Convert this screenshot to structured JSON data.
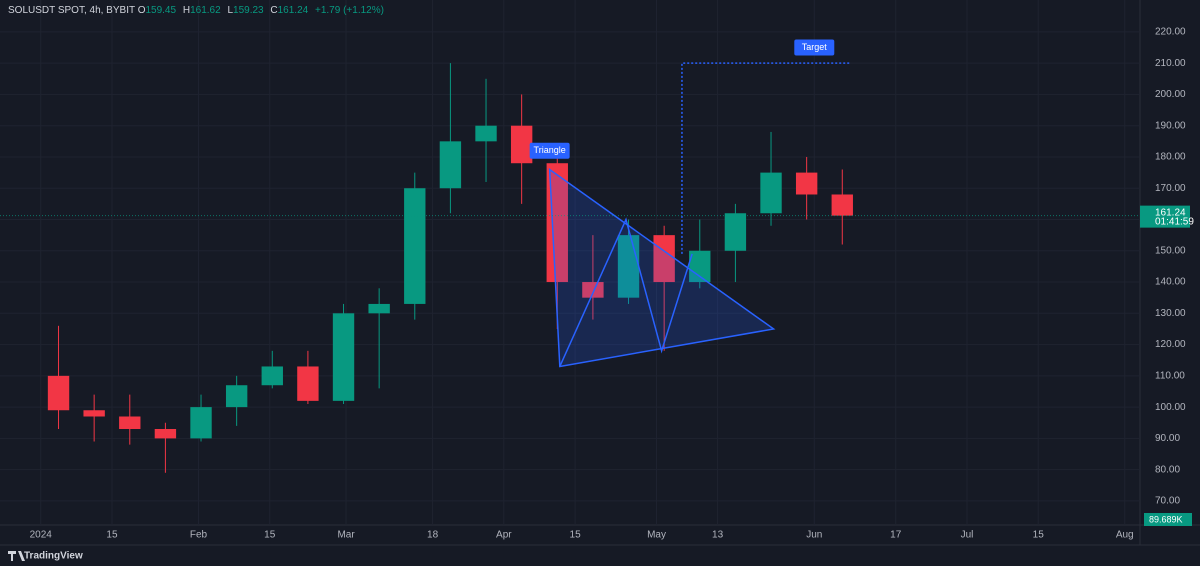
{
  "header": {
    "symbol": "SOLUSDT SPOT, 4h, BYBIT",
    "o_label": "O",
    "open": 159.45,
    "h_label": "H",
    "high": 161.62,
    "l_label": "L",
    "low": 159.23,
    "c_label": "C",
    "close": 161.24,
    "change": "+1.79 (+1.12%)"
  },
  "chart_data": {
    "type": "candlestick",
    "x": [
      "2024-01-01",
      "2024-01-08",
      "2024-01-15",
      "2024-01-22",
      "2024-01-29",
      "2024-02-05",
      "2024-02-12",
      "2024-02-19",
      "2024-02-26",
      "2024-03-04",
      "2024-03-11",
      "2024-03-18",
      "2024-03-25",
      "2024-04-01",
      "2024-04-08",
      "2024-04-15",
      "2024-04-22",
      "2024-04-29",
      "2024-05-06",
      "2024-05-13",
      "2024-05-20",
      "2024-05-27",
      "2024-06-03"
    ],
    "open": [
      110,
      99,
      97,
      93,
      90,
      100,
      107,
      113,
      102,
      130,
      133,
      170,
      185,
      190,
      178,
      140,
      135,
      155,
      140,
      150,
      162,
      175,
      168
    ],
    "high": [
      126,
      104,
      104,
      95,
      104,
      110,
      118,
      118,
      133,
      138,
      175,
      210,
      205,
      200,
      180,
      155,
      160,
      158,
      160,
      165,
      188,
      180,
      176
    ],
    "low": [
      93,
      89,
      88,
      79,
      89,
      94,
      106,
      101,
      101,
      106,
      128,
      162,
      172,
      165,
      125,
      128,
      133,
      118,
      138,
      140,
      158,
      160,
      152
    ],
    "close": [
      99,
      97,
      93,
      90,
      100,
      107,
      113,
      102,
      130,
      133,
      170,
      185,
      190,
      178,
      140,
      135,
      155,
      140,
      150,
      162,
      175,
      168,
      161.24
    ],
    "up_color": "#089981",
    "down_color": "#f23645",
    "xlim": [
      "2023-12-24",
      "2024-08-04"
    ],
    "xticks": [
      {
        "value": "2024-01-01",
        "label": "2024"
      },
      {
        "value": "2024-01-15",
        "label": "15"
      },
      {
        "value": "2024-02-01",
        "label": "Feb"
      },
      {
        "value": "2024-02-15",
        "label": "15"
      },
      {
        "value": "2024-03-01",
        "label": "Mar"
      },
      {
        "value": "2024-03-18",
        "label": "18"
      },
      {
        "value": "2024-04-01",
        "label": "Apr"
      },
      {
        "value": "2024-04-15",
        "label": "15"
      },
      {
        "value": "2024-05-01",
        "label": "May"
      },
      {
        "value": "2024-05-13",
        "label": "13"
      },
      {
        "value": "2024-06-01",
        "label": "Jun"
      },
      {
        "value": "2024-06-17",
        "label": "17"
      },
      {
        "value": "2024-07-01",
        "label": "Jul"
      },
      {
        "value": "2024-07-15",
        "label": "15"
      },
      {
        "value": "2024-08-01",
        "label": "Aug"
      }
    ],
    "ylim": [
      62.3,
      230.2
    ],
    "yticks": [
      {
        "value": 70,
        "label": "70.00"
      },
      {
        "value": 80,
        "label": "80.00"
      },
      {
        "value": 90,
        "label": "90.00"
      },
      {
        "value": 100,
        "label": "100.00"
      },
      {
        "value": 110,
        "label": "110.00"
      },
      {
        "value": 120,
        "label": "120.00"
      },
      {
        "value": 130,
        "label": "130.00"
      },
      {
        "value": 140,
        "label": "140.00"
      },
      {
        "value": 150,
        "label": "150.00"
      },
      {
        "value": 160,
        "label": "160.00"
      },
      {
        "value": 170,
        "label": "170.00"
      },
      {
        "value": 180,
        "label": "180.00"
      },
      {
        "value": 190,
        "label": "190.00"
      },
      {
        "value": 200,
        "label": "200.00"
      },
      {
        "value": 210,
        "label": "210.00"
      },
      {
        "value": 220,
        "label": "220.00"
      }
    ],
    "grid": true,
    "last_price": 161.24,
    "countdown": "01:41:59",
    "volume_label": "89.689K",
    "triangle": {
      "x": [
        "2024-04-10",
        "2024-04-12",
        "2024-05-24"
      ],
      "y": [
        176,
        113,
        125
      ]
    },
    "zigzag": {
      "x": [
        "2024-04-12",
        "2024-04-25",
        "2024-05-02",
        "2024-05-08"
      ],
      "y": [
        113,
        160,
        118,
        149
      ]
    },
    "target": {
      "x": [
        "2024-05-06",
        "2024-05-06",
        "2024-06-08"
      ],
      "y": [
        149,
        210,
        210
      ]
    },
    "annotations": [
      {
        "text": "Triangle",
        "x": "2024-04-10",
        "y": 182
      },
      {
        "text": "Target",
        "x": "2024-06-01",
        "y": 215
      }
    ]
  },
  "footer": {
    "brand": "TradingView"
  }
}
